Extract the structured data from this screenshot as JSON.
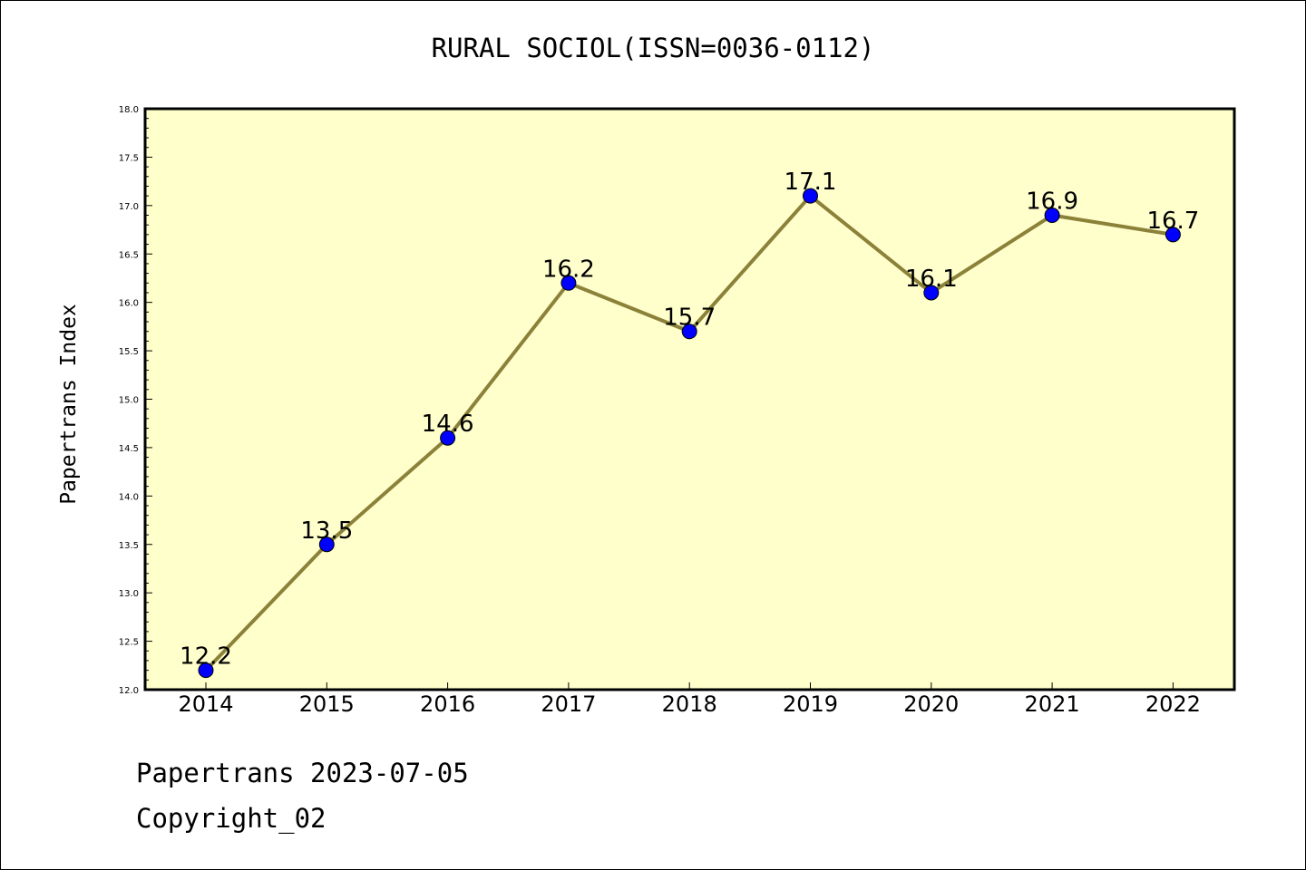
{
  "chart_data": {
    "type": "line",
    "title": "RURAL SOCIOL(ISSN=0036-0112)",
    "xlabel": "",
    "ylabel": "Papertrans Index",
    "categories": [
      "2014",
      "2015",
      "2016",
      "2017",
      "2018",
      "2019",
      "2020",
      "2021",
      "2022"
    ],
    "values": [
      12.2,
      13.5,
      14.6,
      16.2,
      15.7,
      17.1,
      16.1,
      16.9,
      16.7
    ],
    "data_labels": [
      "12.2",
      "13.5",
      "14.6",
      "16.2",
      "15.7",
      "17.1",
      "16.1",
      "16.9",
      "16.7"
    ],
    "ylim": [
      12.0,
      18.0
    ],
    "yticks": [
      "12.0",
      "12.5",
      "13.0",
      "13.5",
      "14.0",
      "14.5",
      "15.0",
      "15.5",
      "16.0",
      "16.5",
      "17.0",
      "17.5",
      "18.0"
    ],
    "grid": false,
    "colors": {
      "plot_background": "#ffffcc",
      "line": "#8b8139",
      "marker": "#0000ff"
    }
  },
  "footer": {
    "line1": "Papertrans 2023-07-05",
    "line2": "Copyright_02"
  }
}
